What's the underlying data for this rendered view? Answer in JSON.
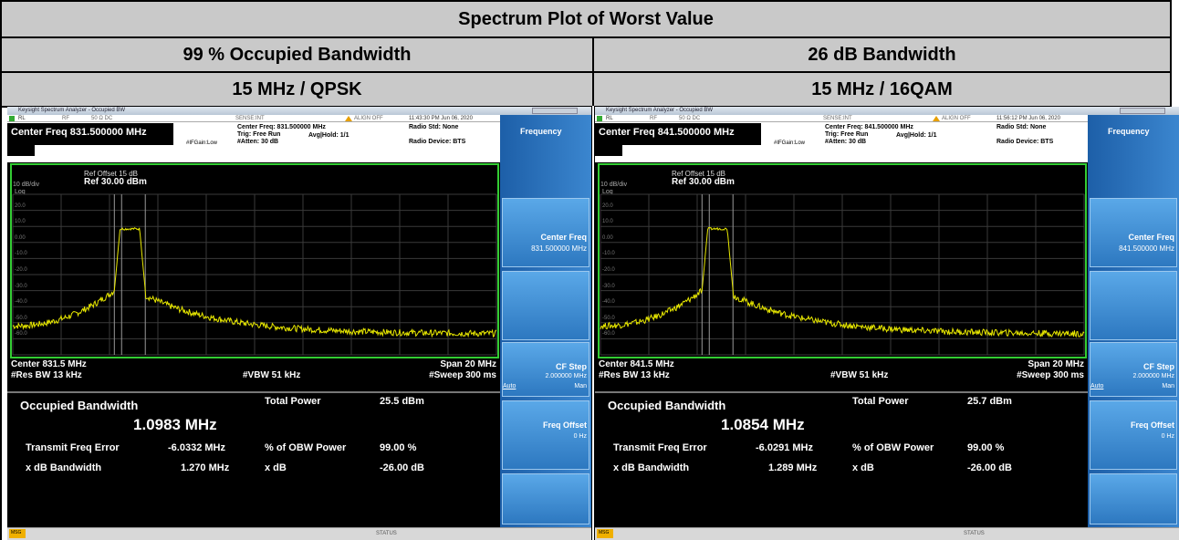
{
  "header": {
    "title": "Spectrum Plot of Worst Value"
  },
  "columns": [
    {
      "measurement": "99 % Occupied Bandwidth",
      "config": "15 MHz / QPSK",
      "screen": {
        "app": "Keysight Spectrum Analyzer - Occupied BW",
        "rl": "RL",
        "rf": "RF",
        "impedance": "50 Ω  DC",
        "sense": "SENSE:INT",
        "align": "ALIGN OFF",
        "timestamp": "11:43:30 PM Jun 06, 2020",
        "center_freq_title": "Center Freq 831.500000 MHz",
        "center_freq": "Center Freq: 831.500000 MHz",
        "trig": "Trig: Free Run",
        "avg_hold": "Avg|Hold: 1/1",
        "atten": "#Atten: 30 dB",
        "if_gain": "#IFGain:Low",
        "radio_std": "Radio Std: None",
        "radio_device": "Radio Device: BTS",
        "ref_offset": "Ref Offset 15 dB",
        "ref_level": "Ref 30.00 dBm",
        "scale": "10 dB/div",
        "log": "Log",
        "y_labels": [
          "20.0",
          "10.0",
          "0.00",
          "-10.0",
          "-20.0",
          "-30.0",
          "-40.0",
          "-50.0",
          "-60.0"
        ],
        "center": "Center  831.5 MHz",
        "span": "Span 20 MHz",
        "res_bw": "#Res BW  13 kHz",
        "vbw": "#VBW  51 kHz",
        "sweep": "#Sweep  300 ms",
        "result_title": "Occupied Bandwidth",
        "obw": "1.0983 MHz",
        "total_power_label": "Total Power",
        "total_power": "25.5 dBm",
        "tfe_label": "Transmit Freq Error",
        "tfe": "-6.0332 MHz",
        "obw_power_label": "% of OBW Power",
        "obw_power": "99.00 %",
        "xdb_bw_label": "x dB Bandwidth",
        "xdb_bw": "1.270 MHz",
        "xdb_label": "x dB",
        "xdb": "-26.00 dB",
        "menu": "Frequency",
        "center_key": "Center Freq",
        "center_key_value": "831.500000 MHz",
        "cf_step": "CF Step",
        "cf_step_value": "2.000000 MHz",
        "auto": "Auto",
        "man": "Man",
        "freq_offset": "Freq Offset",
        "freq_offset_value": "0 Hz",
        "msg": "MSG",
        "status": "STATUS"
      }
    },
    {
      "measurement": "26 dB Bandwidth",
      "config": "15 MHz / 16QAM",
      "screen": {
        "app": "Keysight Spectrum Analyzer - Occupied BW",
        "rl": "RL",
        "rf": "RF",
        "impedance": "50 Ω  DC",
        "sense": "SENSE:INT",
        "align": "ALIGN OFF",
        "timestamp": "11:56:12 PM Jun 06, 2020",
        "center_freq_title": "Center Freq 841.500000 MHz",
        "center_freq": "Center Freq: 841.500000 MHz",
        "trig": "Trig: Free Run",
        "avg_hold": "Avg|Hold: 1/1",
        "atten": "#Atten: 30 dB",
        "if_gain": "#IFGain:Low",
        "radio_std": "Radio Std: None",
        "radio_device": "Radio Device: BTS",
        "ref_offset": "Ref Offset 15 dB",
        "ref_level": "Ref 30.00 dBm",
        "scale": "10 dB/div",
        "log": "Log",
        "y_labels": [
          "20.0",
          "10.0",
          "0.00",
          "-10.0",
          "-20.0",
          "-30.0",
          "-40.0",
          "-50.0",
          "-60.0"
        ],
        "center": "Center  841.5 MHz",
        "span": "Span 20 MHz",
        "res_bw": "#Res BW  13 kHz",
        "vbw": "#VBW  51 kHz",
        "sweep": "#Sweep  300 ms",
        "result_title": "Occupied Bandwidth",
        "obw": "1.0854 MHz",
        "total_power_label": "Total Power",
        "total_power": "25.7 dBm",
        "tfe_label": "Transmit Freq Error",
        "tfe": "-6.0291 MHz",
        "obw_power_label": "% of OBW Power",
        "obw_power": "99.00 %",
        "xdb_bw_label": "x dB Bandwidth",
        "xdb_bw": "1.289 MHz",
        "xdb_label": "x dB",
        "xdb": "-26.00 dB",
        "menu": "Frequency",
        "center_key": "Center Freq",
        "center_key_value": "841.500000 MHz",
        "cf_step": "CF Step",
        "cf_step_value": "2.000000 MHz",
        "auto": "Auto",
        "man": "Man",
        "freq_offset": "Freq Offset",
        "freq_offset_value": "0 Hz",
        "msg": "MSG",
        "status": "STATUS"
      }
    }
  ]
}
